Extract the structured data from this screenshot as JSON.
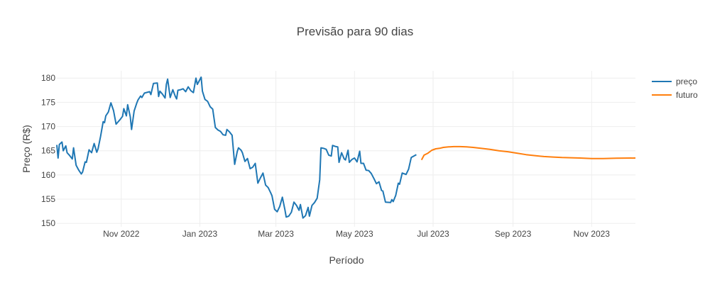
{
  "chart_data": {
    "type": "line",
    "title": "Previsão para 90 dias",
    "xlabel": "Período",
    "ylabel": "Preço (R$)",
    "xlim": [
      "2022-09-12",
      "2023-12-05"
    ],
    "ylim": [
      149.3,
      181.5
    ],
    "x_ticks": [
      {
        "date": "2022-11-01",
        "label": "Nov 2022"
      },
      {
        "date": "2023-01-01",
        "label": "Jan 2023"
      },
      {
        "date": "2023-03-01",
        "label": "Mar 2023"
      },
      {
        "date": "2023-05-01",
        "label": "May 2023"
      },
      {
        "date": "2023-07-01",
        "label": "Jul 2023"
      },
      {
        "date": "2023-09-01",
        "label": "Sep 2023"
      },
      {
        "date": "2023-11-01",
        "label": "Nov 2023"
      }
    ],
    "y_ticks": [
      150,
      155,
      160,
      165,
      170,
      175,
      180
    ],
    "grid": true,
    "legend_position": "top-right",
    "series": [
      {
        "name": "preço",
        "color": "#1f77b4",
        "points": [
          [
            "2022-09-12",
            166.2
          ],
          [
            "2022-09-13",
            163.5
          ],
          [
            "2022-09-14",
            166.3
          ],
          [
            "2022-09-16",
            166.8
          ],
          [
            "2022-09-17",
            165.0
          ],
          [
            "2022-09-19",
            166.0
          ],
          [
            "2022-09-20",
            164.6
          ],
          [
            "2022-09-22",
            164.0
          ],
          [
            "2022-09-24",
            163.3
          ],
          [
            "2022-09-25",
            165.6
          ],
          [
            "2022-09-27",
            162.0
          ],
          [
            "2022-09-29",
            161.0
          ],
          [
            "2022-10-01",
            160.2
          ],
          [
            "2022-10-02",
            160.6
          ],
          [
            "2022-10-04",
            162.7
          ],
          [
            "2022-10-05",
            162.6
          ],
          [
            "2022-10-07",
            165.2
          ],
          [
            "2022-10-09",
            164.6
          ],
          [
            "2022-10-11",
            166.5
          ],
          [
            "2022-10-13",
            164.7
          ],
          [
            "2022-10-14",
            165.4
          ],
          [
            "2022-10-16",
            168.0
          ],
          [
            "2022-10-18",
            171.0
          ],
          [
            "2022-10-19",
            170.8
          ],
          [
            "2022-10-20",
            172.2
          ],
          [
            "2022-10-22",
            173.0
          ],
          [
            "2022-10-24",
            174.9
          ],
          [
            "2022-10-26",
            173.3
          ],
          [
            "2022-10-28",
            170.5
          ],
          [
            "2022-10-31",
            171.4
          ],
          [
            "2022-11-02",
            172.1
          ],
          [
            "2022-11-03",
            173.7
          ],
          [
            "2022-11-05",
            172.2
          ],
          [
            "2022-11-06",
            174.5
          ],
          [
            "2022-11-08",
            172.0
          ],
          [
            "2022-11-09",
            169.4
          ],
          [
            "2022-11-11",
            173.2
          ],
          [
            "2022-11-13",
            174.8
          ],
          [
            "2022-11-14",
            175.5
          ],
          [
            "2022-11-16",
            176.3
          ],
          [
            "2022-11-17",
            176.0
          ],
          [
            "2022-11-19",
            176.9
          ],
          [
            "2022-11-23",
            177.2
          ],
          [
            "2022-11-24",
            176.6
          ],
          [
            "2022-11-26",
            178.9
          ],
          [
            "2022-11-29",
            179.0
          ],
          [
            "2022-11-30",
            176.2
          ],
          [
            "2022-12-01",
            177.3
          ],
          [
            "2022-12-03",
            176.7
          ],
          [
            "2022-12-05",
            175.9
          ],
          [
            "2022-12-06",
            178.7
          ],
          [
            "2022-12-07",
            179.8
          ],
          [
            "2022-12-09",
            176.0
          ],
          [
            "2022-12-11",
            177.6
          ],
          [
            "2022-12-13",
            176.2
          ],
          [
            "2022-12-14",
            175.7
          ],
          [
            "2022-12-15",
            177.5
          ],
          [
            "2022-12-17",
            177.6
          ],
          [
            "2022-12-19",
            177.8
          ],
          [
            "2022-12-21",
            177.2
          ],
          [
            "2022-12-23",
            178.2
          ],
          [
            "2022-12-25",
            177.4
          ],
          [
            "2022-12-27",
            177.0
          ],
          [
            "2022-12-29",
            180.0
          ],
          [
            "2022-12-30",
            178.7
          ],
          [
            "2023-01-02",
            180.2
          ],
          [
            "2023-01-03",
            177.3
          ],
          [
            "2023-01-05",
            175.6
          ],
          [
            "2023-01-07",
            175.2
          ],
          [
            "2023-01-09",
            174.1
          ],
          [
            "2023-01-11",
            173.6
          ],
          [
            "2023-01-13",
            169.8
          ],
          [
            "2023-01-15",
            169.3
          ],
          [
            "2023-01-17",
            169.0
          ],
          [
            "2023-01-19",
            168.3
          ],
          [
            "2023-01-21",
            168.2
          ],
          [
            "2023-01-22",
            169.4
          ],
          [
            "2023-01-24",
            168.9
          ],
          [
            "2023-01-26",
            168.2
          ],
          [
            "2023-01-28",
            162.2
          ],
          [
            "2023-01-30",
            164.8
          ],
          [
            "2023-01-31",
            165.6
          ],
          [
            "2023-02-02",
            165.1
          ],
          [
            "2023-02-03",
            164.6
          ],
          [
            "2023-02-05",
            162.8
          ],
          [
            "2023-02-07",
            163.4
          ],
          [
            "2023-02-09",
            161.3
          ],
          [
            "2023-02-11",
            161.6
          ],
          [
            "2023-02-13",
            162.4
          ],
          [
            "2023-02-15",
            158.3
          ],
          [
            "2023-02-17",
            159.4
          ],
          [
            "2023-02-19",
            160.4
          ],
          [
            "2023-02-21",
            157.9
          ],
          [
            "2023-02-23",
            157.4
          ],
          [
            "2023-02-25",
            156.3
          ],
          [
            "2023-02-26",
            155.7
          ],
          [
            "2023-02-28",
            152.9
          ],
          [
            "2023-03-02",
            152.4
          ],
          [
            "2023-03-04",
            153.5
          ],
          [
            "2023-03-06",
            155.4
          ],
          [
            "2023-03-08",
            152.8
          ],
          [
            "2023-03-09",
            151.3
          ],
          [
            "2023-03-11",
            151.5
          ],
          [
            "2023-03-13",
            152.3
          ],
          [
            "2023-03-15",
            154.4
          ],
          [
            "2023-03-17",
            153.7
          ],
          [
            "2023-03-19",
            152.7
          ],
          [
            "2023-03-20",
            153.9
          ],
          [
            "2023-03-22",
            151.1
          ],
          [
            "2023-03-24",
            151.6
          ],
          [
            "2023-03-26",
            153.3
          ],
          [
            "2023-03-27",
            151.5
          ],
          [
            "2023-03-29",
            153.7
          ],
          [
            "2023-03-31",
            154.3
          ],
          [
            "2023-04-02",
            155.2
          ],
          [
            "2023-04-04",
            159.0
          ],
          [
            "2023-04-05",
            165.6
          ],
          [
            "2023-04-07",
            165.5
          ],
          [
            "2023-04-09",
            165.3
          ],
          [
            "2023-04-11",
            164.1
          ],
          [
            "2023-04-13",
            163.9
          ],
          [
            "2023-04-14",
            166.1
          ],
          [
            "2023-04-16",
            165.9
          ],
          [
            "2023-04-18",
            165.8
          ],
          [
            "2023-04-19",
            162.6
          ],
          [
            "2023-04-21",
            164.6
          ],
          [
            "2023-04-23",
            163.3
          ],
          [
            "2023-04-24",
            163.1
          ],
          [
            "2023-04-26",
            165.1
          ],
          [
            "2023-04-27",
            162.6
          ],
          [
            "2023-04-29",
            163.2
          ],
          [
            "2023-05-01",
            163.5
          ],
          [
            "2023-05-03",
            162.7
          ],
          [
            "2023-05-05",
            164.9
          ],
          [
            "2023-05-06",
            162.4
          ],
          [
            "2023-05-08",
            162.4
          ],
          [
            "2023-05-10",
            161.0
          ],
          [
            "2023-05-12",
            160.9
          ],
          [
            "2023-05-14",
            160.3
          ],
          [
            "2023-05-16",
            159.3
          ],
          [
            "2023-05-18",
            158.2
          ],
          [
            "2023-05-20",
            158.6
          ],
          [
            "2023-05-22",
            156.8
          ],
          [
            "2023-05-23",
            156.7
          ],
          [
            "2023-05-25",
            154.4
          ],
          [
            "2023-05-29",
            154.3
          ],
          [
            "2023-05-30",
            154.9
          ],
          [
            "2023-05-31",
            154.5
          ],
          [
            "2023-06-02",
            155.8
          ],
          [
            "2023-06-04",
            158.3
          ],
          [
            "2023-06-05",
            158.1
          ],
          [
            "2023-06-07",
            160.4
          ],
          [
            "2023-06-10",
            160.1
          ],
          [
            "2023-06-12",
            161.2
          ],
          [
            "2023-06-14",
            163.6
          ],
          [
            "2023-06-18",
            164.2
          ]
        ]
      },
      {
        "name": "futuro",
        "color": "#ff7f0e",
        "points": [
          [
            "2023-06-22",
            163.1
          ],
          [
            "2023-06-24",
            164.1
          ],
          [
            "2023-06-27",
            164.5
          ],
          [
            "2023-06-30",
            165.1
          ],
          [
            "2023-07-03",
            165.4
          ],
          [
            "2023-07-06",
            165.5
          ],
          [
            "2023-07-09",
            165.7
          ],
          [
            "2023-07-13",
            165.8
          ],
          [
            "2023-07-17",
            165.85
          ],
          [
            "2023-07-22",
            165.85
          ],
          [
            "2023-07-27",
            165.8
          ],
          [
            "2023-08-01",
            165.7
          ],
          [
            "2023-08-07",
            165.5
          ],
          [
            "2023-08-14",
            165.3
          ],
          [
            "2023-08-21",
            165.0
          ],
          [
            "2023-08-28",
            164.8
          ],
          [
            "2023-09-04",
            164.5
          ],
          [
            "2023-09-11",
            164.2
          ],
          [
            "2023-09-18",
            164.0
          ],
          [
            "2023-09-25",
            163.8
          ],
          [
            "2023-10-02",
            163.7
          ],
          [
            "2023-10-09",
            163.6
          ],
          [
            "2023-10-16",
            163.55
          ],
          [
            "2023-10-23",
            163.5
          ],
          [
            "2023-11-01",
            163.4
          ],
          [
            "2023-11-10",
            163.4
          ],
          [
            "2023-11-20",
            163.45
          ],
          [
            "2023-12-05",
            163.5
          ]
        ]
      }
    ]
  }
}
